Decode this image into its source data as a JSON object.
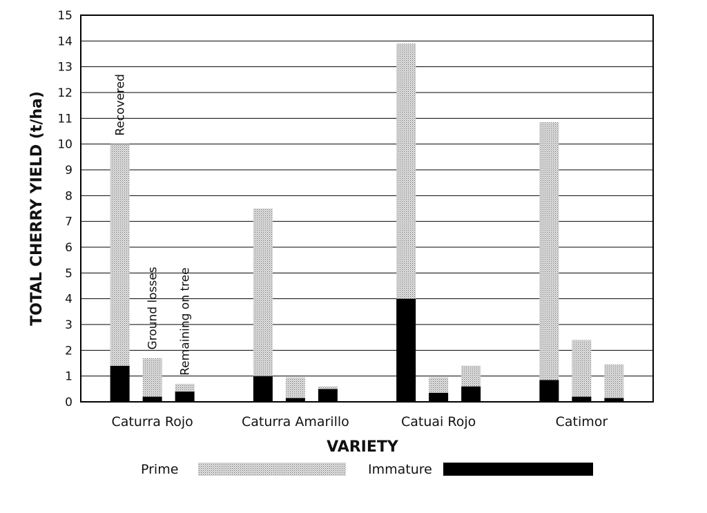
{
  "chart_data": {
    "type": "bar",
    "stacked": true,
    "title": "",
    "xlabel": "VARIETY",
    "ylabel": "TOTAL CHERRY YIELD (t/ha)",
    "ylim": [
      0,
      15
    ],
    "yticks": [
      0,
      1,
      2,
      3,
      4,
      5,
      6,
      7,
      8,
      9,
      10,
      11,
      12,
      13,
      14,
      15
    ],
    "grid": "horizontal",
    "legend_position": "bottom",
    "categories": [
      "Caturra Rojo",
      "Caturra Amarillo",
      "Catuai Rojo",
      "Catimor"
    ],
    "bar_roles": [
      "Recovered",
      "Ground losses",
      "Remaining on tree"
    ],
    "series": [
      {
        "name": "Prime",
        "color": "#bfbfbf",
        "values": [
          [
            8.6,
            1.5,
            0.3
          ],
          [
            6.5,
            0.8,
            0.1
          ],
          [
            9.9,
            0.6,
            0.8
          ],
          [
            10.0,
            2.2,
            1.3
          ]
        ]
      },
      {
        "name": "Immature",
        "color": "#000000",
        "values": [
          [
            1.4,
            0.2,
            0.4
          ],
          [
            1.0,
            0.15,
            0.5
          ],
          [
            4.0,
            0.35,
            0.6
          ],
          [
            0.85,
            0.2,
            0.15
          ]
        ]
      }
    ]
  }
}
